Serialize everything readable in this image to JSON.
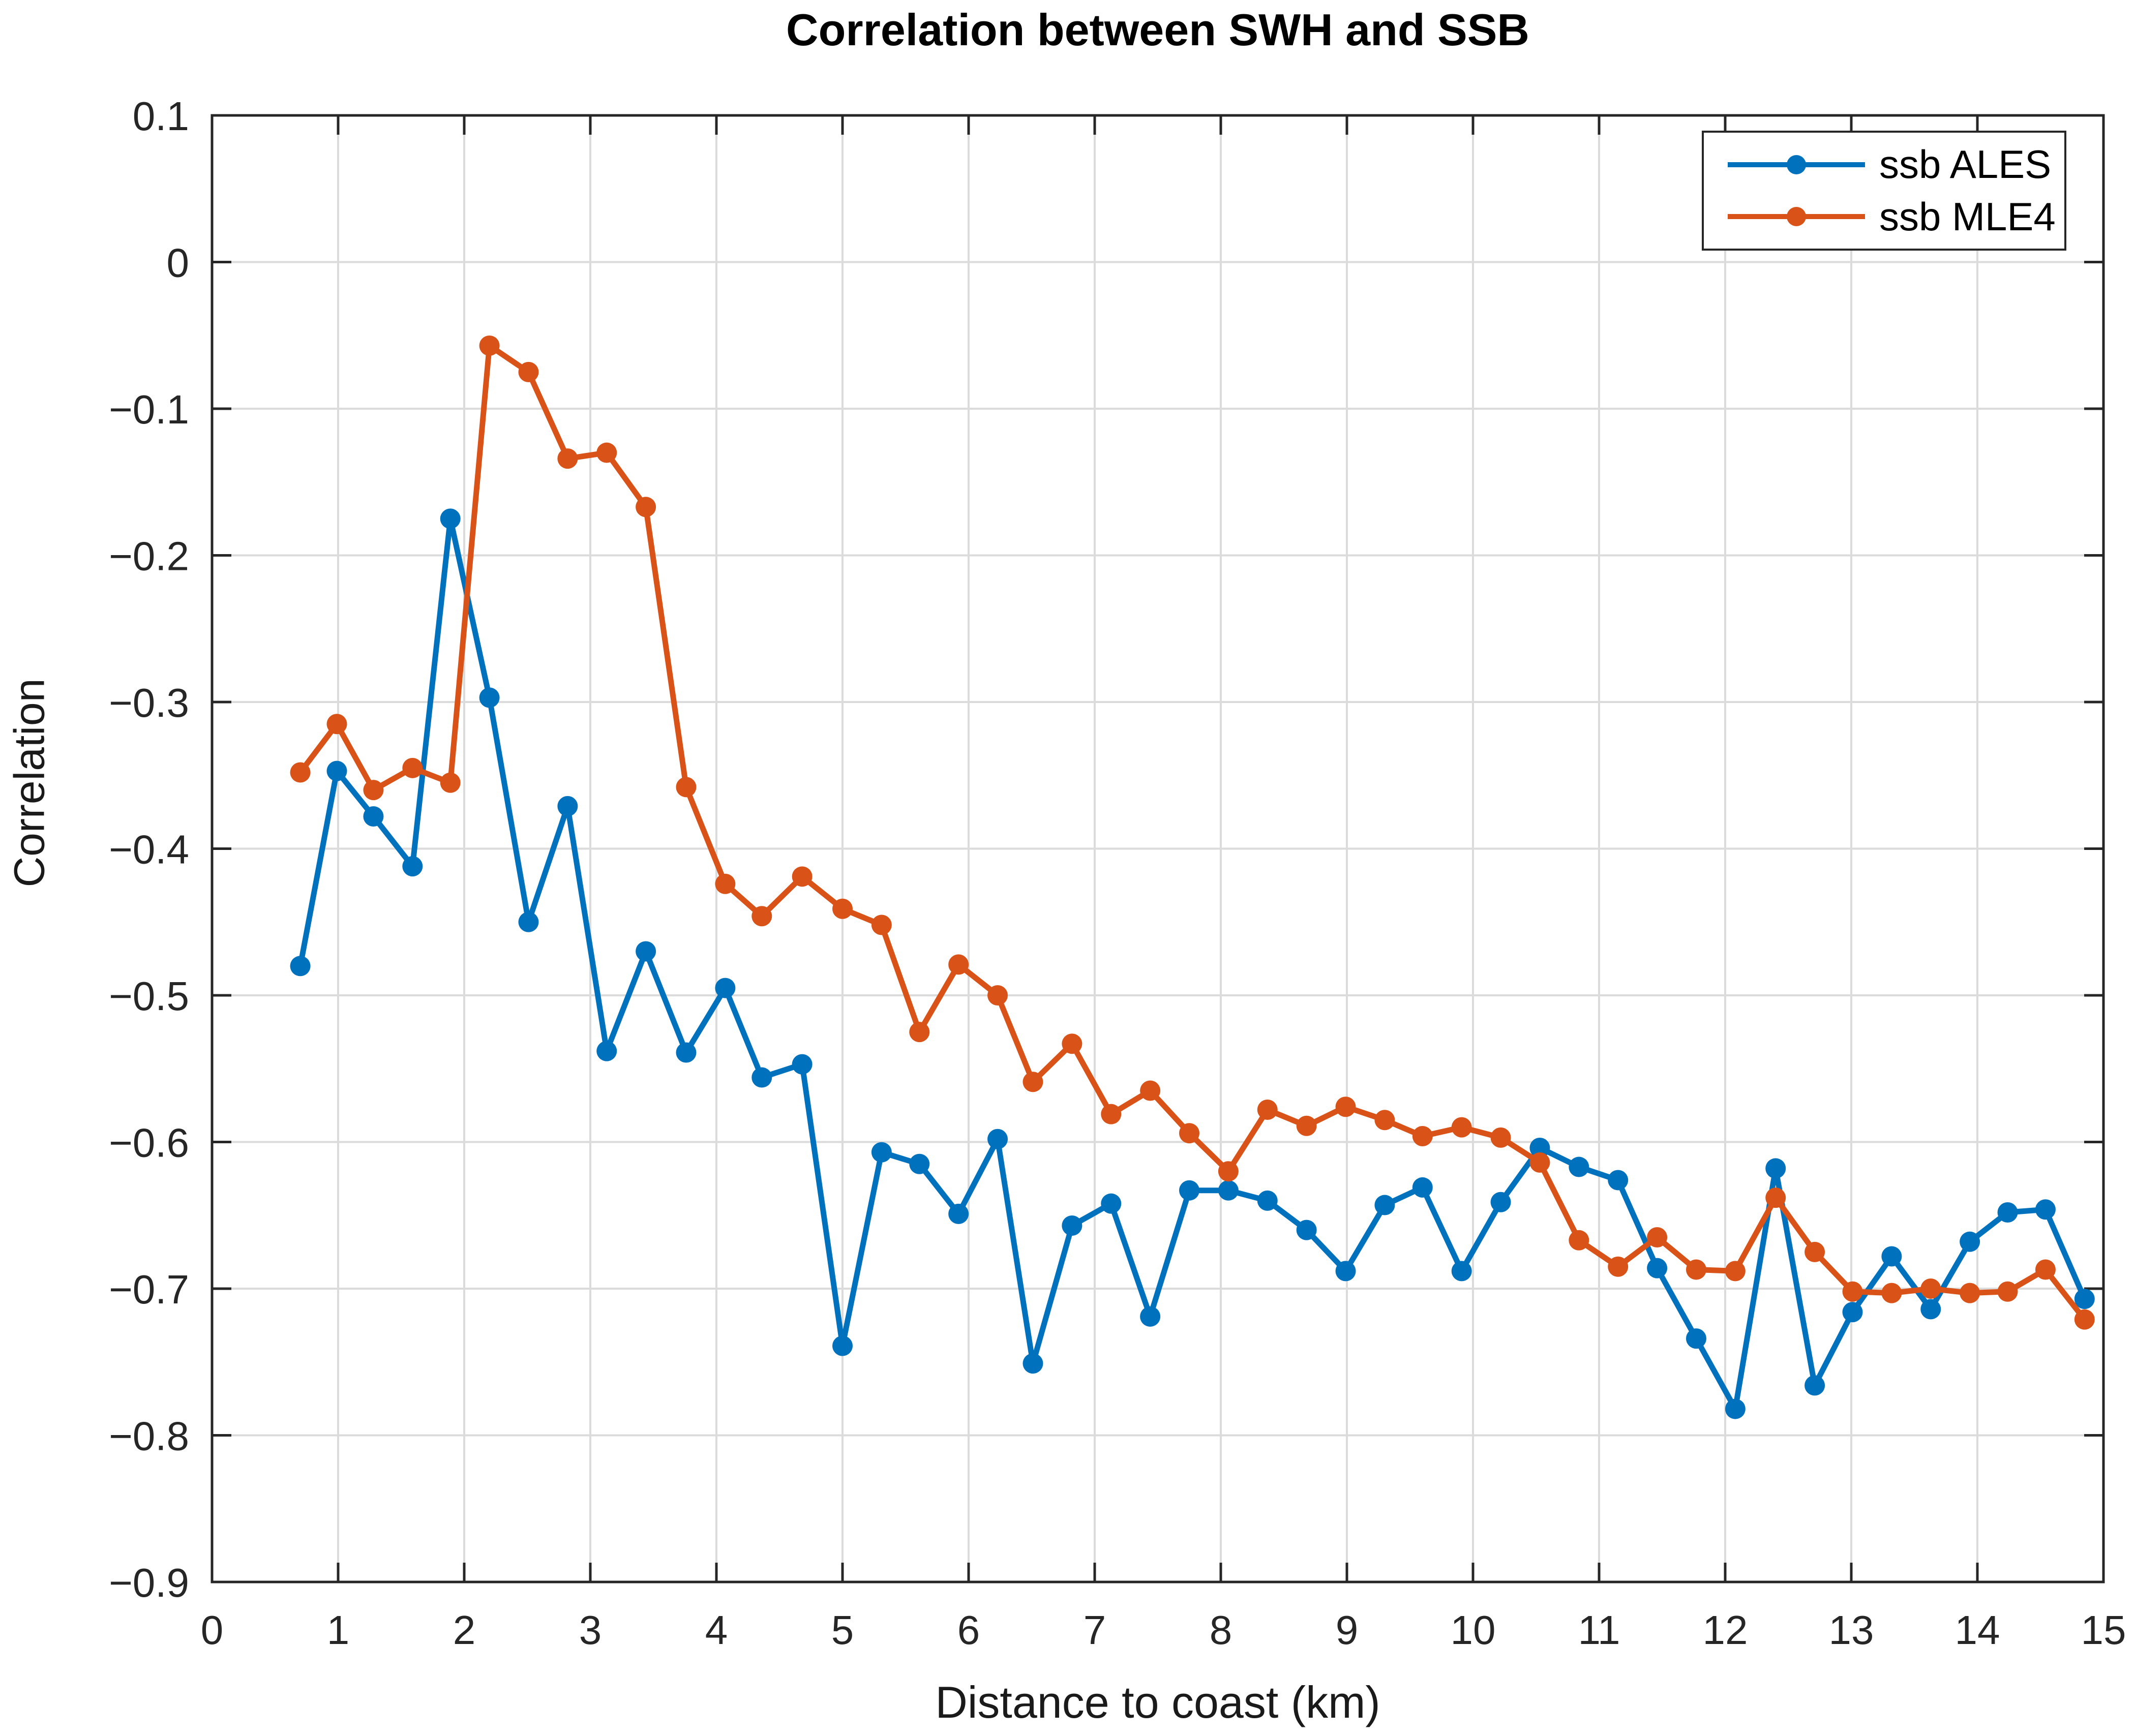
{
  "title": {
    "text": "Correlation between SWH and SSB"
  },
  "axes": {
    "x": {
      "label": "Distance to coast (km)",
      "tick_labels": [
        "0",
        "1",
        "2",
        "3",
        "4",
        "5",
        "6",
        "7",
        "8",
        "9",
        "10",
        "11",
        "12",
        "13",
        "14",
        "15"
      ],
      "tick_values": [
        0,
        1,
        2,
        3,
        4,
        5,
        6,
        7,
        8,
        9,
        10,
        11,
        12,
        13,
        14,
        15
      ]
    },
    "y": {
      "label": "Correlation",
      "tick_labels": [
        "0.1",
        "0",
        "−0.1",
        "−0.2",
        "−0.3",
        "−0.4",
        "−0.5",
        "−0.6",
        "−0.7",
        "−0.8",
        "−0.9"
      ],
      "tick_values": [
        0.1,
        0,
        -0.1,
        -0.2,
        -0.3,
        -0.4,
        -0.5,
        -0.6,
        -0.7,
        -0.8,
        -0.9
      ]
    }
  },
  "legend": {
    "position": "northeast",
    "entries": [
      {
        "label": "ssb ALES",
        "color": "#0072BD"
      },
      {
        "label": "ssb MLE4",
        "color": "#D95319"
      }
    ]
  },
  "colors": {
    "grid": "#DBDBDB",
    "axis": "#262626",
    "tick_label": "#262626",
    "background": "#ffffff"
  },
  "chart_data": {
    "type": "line",
    "title": "Correlation between SWH and SSB",
    "xlabel": "Distance to coast (km)",
    "ylabel": "Correlation",
    "xlim": [
      0,
      15
    ],
    "ylim": [
      -0.9,
      0.1
    ],
    "grid": true,
    "legend_position": "northeast",
    "marker": "o",
    "x": [
      0.7,
      0.99,
      1.28,
      1.59,
      1.89,
      2.2,
      2.51,
      2.82,
      3.13,
      3.44,
      3.76,
      4.07,
      4.36,
      4.68,
      5.0,
      5.31,
      5.61,
      5.92,
      6.23,
      6.51,
      6.82,
      7.13,
      7.44,
      7.75,
      8.06,
      8.37,
      8.68,
      8.99,
      9.3,
      9.6,
      9.91,
      10.22,
      10.53,
      10.84,
      11.15,
      11.46,
      11.77,
      12.08,
      12.4,
      12.71,
      13.01,
      13.32,
      13.63,
      13.94,
      14.24,
      14.54,
      14.85
    ],
    "series": [
      {
        "name": "ssb ALES",
        "color": "#0072BD",
        "values": [
          -0.48,
          -0.347,
          -0.378,
          -0.412,
          -0.175,
          -0.297,
          -0.45,
          -0.371,
          -0.538,
          -0.47,
          -0.539,
          -0.495,
          -0.556,
          -0.547,
          -0.739,
          -0.607,
          -0.615,
          -0.649,
          -0.598,
          -0.751,
          -0.657,
          -0.642,
          -0.719,
          -0.633,
          -0.633,
          -0.64,
          -0.66,
          -0.688,
          -0.643,
          -0.631,
          -0.688,
          -0.641,
          -0.604,
          -0.617,
          -0.626,
          -0.686,
          -0.734,
          -0.782,
          -0.618,
          -0.766,
          -0.716,
          -0.678,
          -0.714,
          -0.668,
          -0.648,
          -0.646,
          -0.707
        ]
      },
      {
        "name": "ssb MLE4",
        "color": "#D95319",
        "values": [
          -0.348,
          -0.315,
          -0.36,
          -0.345,
          -0.355,
          -0.057,
          -0.075,
          -0.134,
          -0.13,
          -0.167,
          -0.358,
          -0.424,
          -0.446,
          -0.419,
          -0.441,
          -0.452,
          -0.525,
          -0.479,
          -0.5,
          -0.559,
          -0.533,
          -0.581,
          -0.565,
          -0.594,
          -0.62,
          -0.578,
          -0.589,
          -0.576,
          -0.585,
          -0.596,
          -0.59,
          -0.597,
          -0.614,
          -0.667,
          -0.685,
          -0.665,
          -0.687,
          -0.688,
          -0.638,
          -0.675,
          -0.702,
          -0.703,
          -0.7,
          -0.703,
          -0.702,
          -0.687,
          -0.721
        ]
      }
    ]
  }
}
